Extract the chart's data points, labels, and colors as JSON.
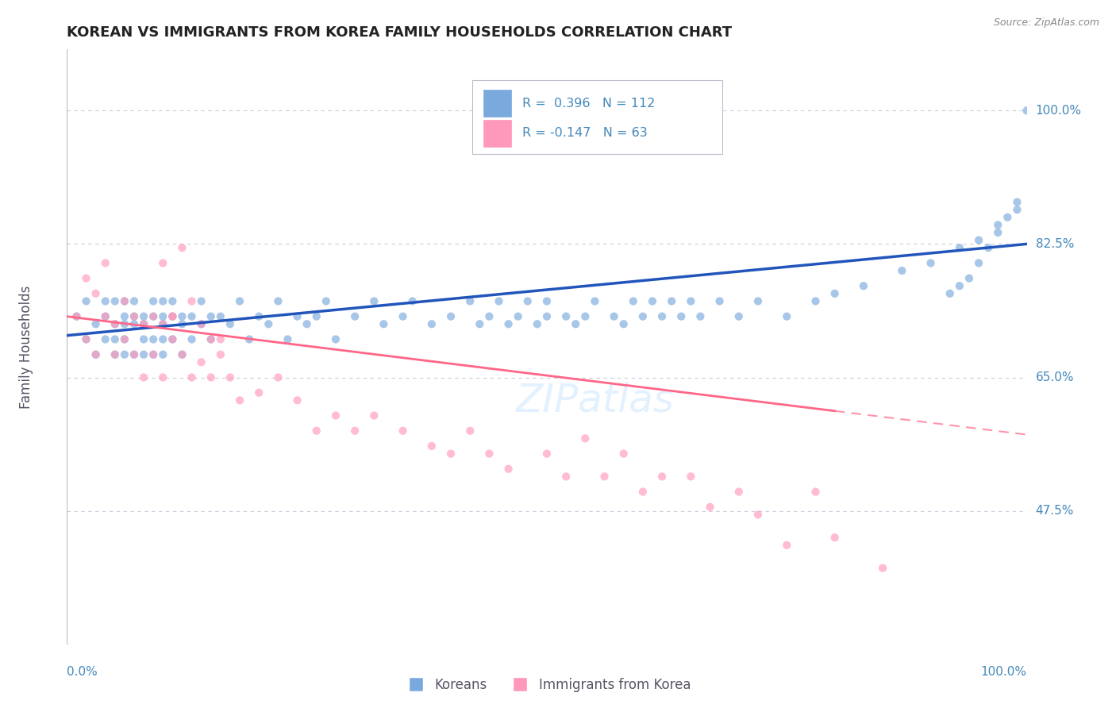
{
  "title": "KOREAN VS IMMIGRANTS FROM KOREA FAMILY HOUSEHOLDS CORRELATION CHART",
  "source": "Source: ZipAtlas.com",
  "ylabel": "Family Households",
  "legend_label1": "Koreans",
  "legend_label2": "Immigrants from Korea",
  "r1": 0.396,
  "n1": 112,
  "r2": -0.147,
  "n2": 63,
  "ytick_values": [
    47.5,
    65.0,
    82.5,
    100.0
  ],
  "ylim": [
    30,
    108
  ],
  "xlim": [
    0,
    100
  ],
  "color_blue": "#7AAADD",
  "color_pink": "#FF99BB",
  "line_blue": "#2255BB",
  "line_pink": "#FF6688",
  "grid_color": "#CCCCDD",
  "title_color": "#222222",
  "axis_label_color": "#4488BB",
  "scatter_alpha": 0.65,
  "scatter_size": 55,
  "blue_line_start": 70.5,
  "blue_line_end": 82.5,
  "pink_line_start": 73.0,
  "pink_line_end": 57.5,
  "blue_x": [
    1,
    2,
    2,
    3,
    3,
    4,
    4,
    4,
    5,
    5,
    5,
    5,
    6,
    6,
    6,
    6,
    6,
    7,
    7,
    7,
    7,
    8,
    8,
    8,
    8,
    9,
    9,
    9,
    9,
    10,
    10,
    10,
    10,
    10,
    11,
    11,
    11,
    12,
    12,
    12,
    13,
    13,
    14,
    14,
    15,
    15,
    16,
    17,
    18,
    19,
    20,
    21,
    22,
    23,
    24,
    25,
    26,
    27,
    28,
    30,
    32,
    33,
    35,
    36,
    38,
    40,
    42,
    43,
    44,
    45,
    46,
    47,
    48,
    49,
    50,
    50,
    52,
    53,
    54,
    55,
    57,
    58,
    59,
    60,
    61,
    62,
    63,
    64,
    65,
    66,
    68,
    70,
    72,
    75,
    78,
    80,
    83,
    87,
    90,
    93,
    95,
    97,
    99,
    100,
    99,
    98,
    97,
    96,
    95,
    94,
    93,
    92
  ],
  "blue_y": [
    73,
    70,
    75,
    72,
    68,
    75,
    70,
    73,
    72,
    68,
    75,
    70,
    73,
    68,
    72,
    75,
    70,
    73,
    68,
    72,
    75,
    70,
    73,
    68,
    72,
    73,
    70,
    75,
    68,
    72,
    75,
    70,
    73,
    68,
    73,
    70,
    75,
    72,
    68,
    73,
    70,
    73,
    72,
    75,
    70,
    73,
    73,
    72,
    75,
    70,
    73,
    72,
    75,
    70,
    73,
    72,
    73,
    75,
    70,
    73,
    75,
    72,
    73,
    75,
    72,
    73,
    75,
    72,
    73,
    75,
    72,
    73,
    75,
    72,
    73,
    75,
    73,
    72,
    73,
    75,
    73,
    72,
    75,
    73,
    75,
    73,
    75,
    73,
    75,
    73,
    75,
    73,
    75,
    73,
    75,
    76,
    77,
    79,
    80,
    82,
    83,
    85,
    87,
    100,
    88,
    86,
    84,
    82,
    80,
    78,
    77,
    76
  ],
  "pink_x": [
    1,
    2,
    2,
    3,
    3,
    4,
    4,
    5,
    5,
    6,
    6,
    7,
    7,
    8,
    8,
    9,
    9,
    10,
    10,
    11,
    11,
    12,
    13,
    14,
    15,
    16,
    17,
    18,
    20,
    22,
    24,
    26,
    28,
    30,
    32,
    35,
    38,
    40,
    42,
    44,
    46,
    50,
    52,
    54,
    56,
    58,
    60,
    62,
    65,
    67,
    70,
    72,
    75,
    78,
    80,
    85,
    10,
    11,
    12,
    13,
    14,
    15,
    16
  ],
  "pink_y": [
    73,
    78,
    70,
    76,
    68,
    80,
    73,
    72,
    68,
    75,
    70,
    73,
    68,
    72,
    65,
    73,
    68,
    72,
    65,
    70,
    73,
    68,
    65,
    67,
    70,
    68,
    65,
    62,
    63,
    65,
    62,
    58,
    60,
    58,
    60,
    58,
    56,
    55,
    58,
    55,
    53,
    55,
    52,
    57,
    52,
    55,
    50,
    52,
    52,
    48,
    50,
    47,
    43,
    50,
    44,
    40,
    80,
    73,
    82,
    75,
    72,
    65,
    70
  ]
}
